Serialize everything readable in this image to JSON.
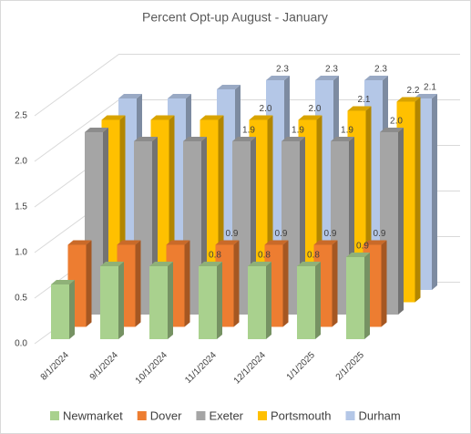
{
  "chart_data": {
    "type": "bar3d",
    "title": "Percent Opt-up August - January",
    "categories": [
      "8/1/2024",
      "9/1/2024",
      "10/1/2024",
      "11/1/2024",
      "12/1/2024",
      "1/1/2025",
      "2/1/2025"
    ],
    "series": [
      {
        "name": "Newmarket",
        "color": "#a9d18e",
        "values": [
          0.6,
          0.8,
          0.8,
          0.8,
          0.8,
          0.8,
          0.9
        ],
        "value_labels": [
          null,
          null,
          null,
          "0.8",
          "0.8",
          "0.8",
          "0.9"
        ]
      },
      {
        "name": "Dover",
        "color": "#ed7d31",
        "values": [
          0.9,
          0.9,
          0.9,
          0.9,
          0.9,
          0.9,
          0.9
        ],
        "value_labels": [
          null,
          null,
          null,
          "0.9",
          "0.9",
          "0.9",
          "0.9"
        ]
      },
      {
        "name": "Exeter",
        "color": "#a5a5a5",
        "values": [
          2.0,
          1.9,
          1.9,
          1.9,
          1.9,
          1.9,
          2.0
        ],
        "value_labels": [
          null,
          null,
          null,
          "1.9",
          "1.9",
          "1.9",
          "2.0"
        ]
      },
      {
        "name": "Portsmouth",
        "color": "#ffc000",
        "values": [
          2.0,
          2.0,
          2.0,
          2.0,
          2.0,
          2.1,
          2.2
        ],
        "value_labels": [
          null,
          null,
          null,
          "2.0",
          "2.0",
          "2.1",
          "2.2"
        ]
      },
      {
        "name": "Durham",
        "color": "#b4c7e7",
        "values": [
          2.1,
          2.1,
          2.2,
          2.3,
          2.3,
          2.3,
          2.1
        ],
        "value_labels": [
          null,
          null,
          null,
          "2.3",
          "2.3",
          "2.3",
          "2.1"
        ]
      }
    ],
    "ylim": [
      0,
      2.5
    ],
    "yticks": [
      {
        "value": 0,
        "label": "0.0"
      },
      {
        "value": 0.5,
        "label": "0.5"
      },
      {
        "value": 1,
        "label": "1.0"
      },
      {
        "value": 1.5,
        "label": "1.5"
      },
      {
        "value": 2,
        "label": "2.0"
      },
      {
        "value": 2.5,
        "label": "2.5"
      }
    ],
    "grid": true
  }
}
